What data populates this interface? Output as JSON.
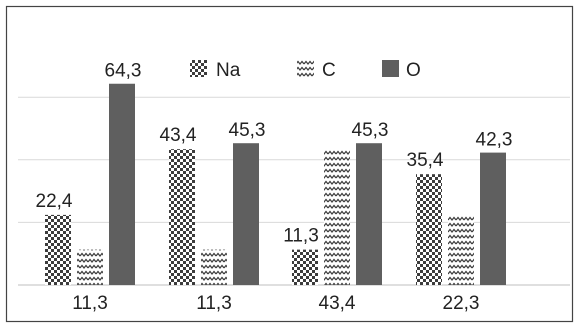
{
  "chart_data": {
    "type": "bar",
    "categories": [
      "",
      "",
      "",
      ""
    ],
    "series": [
      {
        "name": "Na",
        "values": [
          22.4,
          43.4,
          11.3,
          35.4
        ],
        "pattern": "checker",
        "labels": [
          "22,4",
          "43,4",
          "11,3",
          "35,4"
        ]
      },
      {
        "name": "C",
        "values": [
          11.3,
          11.3,
          43.4,
          22.3
        ],
        "pattern": "zigzag",
        "labels": [
          "11,3",
          "11,3",
          "43,4",
          "22,3"
        ]
      },
      {
        "name": "O",
        "values": [
          64.3,
          45.3,
          45.3,
          42.3
        ],
        "pattern": "solid",
        "labels": [
          "64,3",
          "45,3",
          "45,3",
          "42,3"
        ]
      }
    ],
    "ylim": [
      0,
      70
    ],
    "grid": true,
    "legend": "top",
    "colors": {
      "solid": "#5f5f5f",
      "pattern_dark": "#3c3c3c",
      "grid": "#d9d9d9",
      "frame": "#444444",
      "axis": "#bfbfbf"
    }
  }
}
